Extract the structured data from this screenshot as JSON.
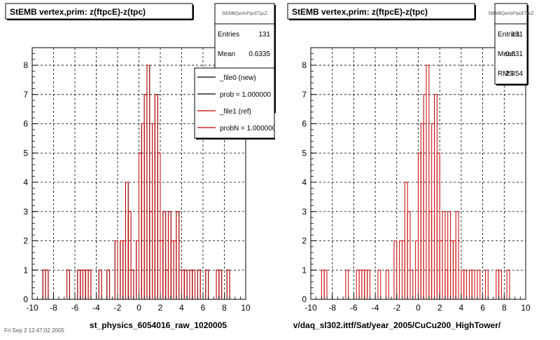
{
  "colors": {
    "new": "#000000",
    "ref": "#cc0000",
    "grid": "#000000"
  },
  "footer": {
    "date_text": "Fri Sep 2 12:47:02 2005"
  },
  "chart_data": [
    {
      "type": "bar",
      "title": "StEMB  vertex,prim: z(ftpcE)-z(tpc)",
      "xlabel": "st_physics_6054016_raw_1020005",
      "ylabel": "",
      "xlim": [
        -10,
        10
      ],
      "ylim": [
        0,
        8.6
      ],
      "x_ticks": [
        -10,
        -8,
        -6,
        -4,
        -2,
        0,
        2,
        4,
        6,
        8,
        10
      ],
      "y_ticks": [
        0,
        1,
        2,
        3,
        4,
        5,
        6,
        7,
        8
      ],
      "grid": true,
      "bin_width": 0.25,
      "stats": {
        "name": "StEMBQaVtxFtpcETpcZ",
        "rows": [
          {
            "label": "Entries",
            "value": "131"
          },
          {
            "label": "Mean",
            "value": "0.6335"
          }
        ]
      },
      "legend": {
        "placement": "top-right",
        "entries": [
          {
            "label": "_file0 (new)",
            "color": "#000000"
          },
          {
            "label": "prob = 1.000000",
            "color": "#000000"
          },
          {
            "label": "_file1 (ref)",
            "color": "#cc0000"
          },
          {
            "label": "probN = 1.000000",
            "color": "#cc0000"
          }
        ]
      },
      "series": [
        {
          "name": "_file0 (new)",
          "color": "#000000",
          "bins": [
            [
              -9,
              1
            ],
            [
              -8.75,
              1
            ],
            [
              -6.75,
              1
            ],
            [
              -5.75,
              1
            ],
            [
              -5.5,
              1
            ],
            [
              -5.25,
              1
            ],
            [
              -5,
              1
            ],
            [
              -4.75,
              1
            ],
            [
              -3.75,
              1
            ],
            [
              -3,
              1
            ],
            [
              -2.25,
              2
            ],
            [
              -1.75,
              2
            ],
            [
              -1.5,
              2
            ],
            [
              -1.25,
              4
            ],
            [
              -1,
              3
            ],
            [
              -0.75,
              1
            ],
            [
              -0.25,
              2
            ],
            [
              0,
              5
            ],
            [
              0.25,
              6
            ],
            [
              0.5,
              7
            ],
            [
              0.75,
              8
            ],
            [
              1,
              3
            ],
            [
              1.25,
              6
            ],
            [
              1.5,
              7
            ],
            [
              1.75,
              5
            ],
            [
              2,
              2
            ],
            [
              2.25,
              3
            ],
            [
              2.5,
              1
            ],
            [
              2.75,
              3
            ],
            [
              3,
              2
            ],
            [
              3.25,
              2
            ],
            [
              3.5,
              3
            ],
            [
              4,
              1
            ],
            [
              4.25,
              1
            ],
            [
              4.75,
              1
            ],
            [
              5,
              1
            ],
            [
              5.5,
              1
            ],
            [
              6.25,
              1
            ],
            [
              7.25,
              1
            ],
            [
              7.5,
              1
            ],
            [
              8.25,
              1
            ]
          ]
        },
        {
          "name": "_file1 (ref)",
          "color": "#cc0000",
          "bins": [
            [
              -9,
              1
            ],
            [
              -8.75,
              1
            ],
            [
              -6.75,
              1
            ],
            [
              -5.75,
              1
            ],
            [
              -5.5,
              1
            ],
            [
              -5.25,
              1
            ],
            [
              -5,
              1
            ],
            [
              -4.75,
              1
            ],
            [
              -3.75,
              1
            ],
            [
              -3,
              1
            ],
            [
              -2.25,
              2
            ],
            [
              -1.75,
              2
            ],
            [
              -1.5,
              2
            ],
            [
              -1.25,
              4
            ],
            [
              -1,
              3
            ],
            [
              -0.75,
              1
            ],
            [
              -0.25,
              2
            ],
            [
              0,
              5
            ],
            [
              0.25,
              6
            ],
            [
              0.5,
              7
            ],
            [
              0.75,
              8
            ],
            [
              1,
              3
            ],
            [
              1.25,
              6
            ],
            [
              1.5,
              7
            ],
            [
              1.75,
              5
            ],
            [
              2,
              2
            ],
            [
              2.25,
              3
            ],
            [
              2.5,
              1
            ],
            [
              2.75,
              3
            ],
            [
              3,
              2
            ],
            [
              3.25,
              2
            ],
            [
              3.5,
              3
            ],
            [
              4,
              1
            ],
            [
              4.25,
              1
            ],
            [
              4.75,
              1
            ],
            [
              5,
              1
            ],
            [
              5.5,
              1
            ],
            [
              6.25,
              1
            ],
            [
              7.25,
              1
            ],
            [
              7.5,
              1
            ],
            [
              8.25,
              1
            ]
          ]
        }
      ]
    },
    {
      "type": "bar",
      "title": "StEMB  vertex,prim: z(ftpcE)-z(tpc)",
      "xlabel": "v/daq_sl302.ittf/Sat/year_2005/CuCu200_HighTower/",
      "ylabel": "",
      "xlim": [
        -10,
        10
      ],
      "ylim": [
        0,
        8.6
      ],
      "x_ticks": [
        -10,
        -8,
        -6,
        -4,
        -2,
        0,
        2,
        4,
        6,
        8,
        10
      ],
      "y_ticks": [
        0,
        1,
        2,
        3,
        4,
        5,
        6,
        7,
        8
      ],
      "grid": true,
      "bin_width": 0.25,
      "stats": {
        "name": "StEMBQaVtxFtpcETpcZ",
        "rows": [
          {
            "label": "Entries",
            "value": "131"
          },
          {
            "label": "Mean",
            "value": "0.631"
          },
          {
            "label": "RMS",
            "value": "2.854"
          }
        ]
      },
      "series": [
        {
          "name": "",
          "color": "#cc0000",
          "bins": [
            [
              -9,
              1
            ],
            [
              -8.75,
              1
            ],
            [
              -6.75,
              1
            ],
            [
              -5.75,
              1
            ],
            [
              -5.5,
              1
            ],
            [
              -5.25,
              1
            ],
            [
              -5,
              1
            ],
            [
              -4.75,
              1
            ],
            [
              -3.75,
              1
            ],
            [
              -3,
              1
            ],
            [
              -2.25,
              2
            ],
            [
              -1.75,
              2
            ],
            [
              -1.5,
              2
            ],
            [
              -1.25,
              4
            ],
            [
              -1,
              3
            ],
            [
              -0.75,
              1
            ],
            [
              -0.25,
              2
            ],
            [
              0,
              5
            ],
            [
              0.25,
              6
            ],
            [
              0.5,
              7
            ],
            [
              0.75,
              8
            ],
            [
              1,
              3
            ],
            [
              1.25,
              6
            ],
            [
              1.5,
              7
            ],
            [
              1.75,
              5
            ],
            [
              2,
              2
            ],
            [
              2.25,
              3
            ],
            [
              2.5,
              1
            ],
            [
              2.75,
              3
            ],
            [
              3,
              2
            ],
            [
              3.25,
              2
            ],
            [
              3.5,
              3
            ],
            [
              4,
              1
            ],
            [
              4.25,
              1
            ],
            [
              4.75,
              1
            ],
            [
              5,
              1
            ],
            [
              5.5,
              1
            ],
            [
              6.25,
              1
            ],
            [
              7.25,
              1
            ],
            [
              7.5,
              1
            ],
            [
              8.25,
              1
            ]
          ]
        }
      ]
    }
  ]
}
